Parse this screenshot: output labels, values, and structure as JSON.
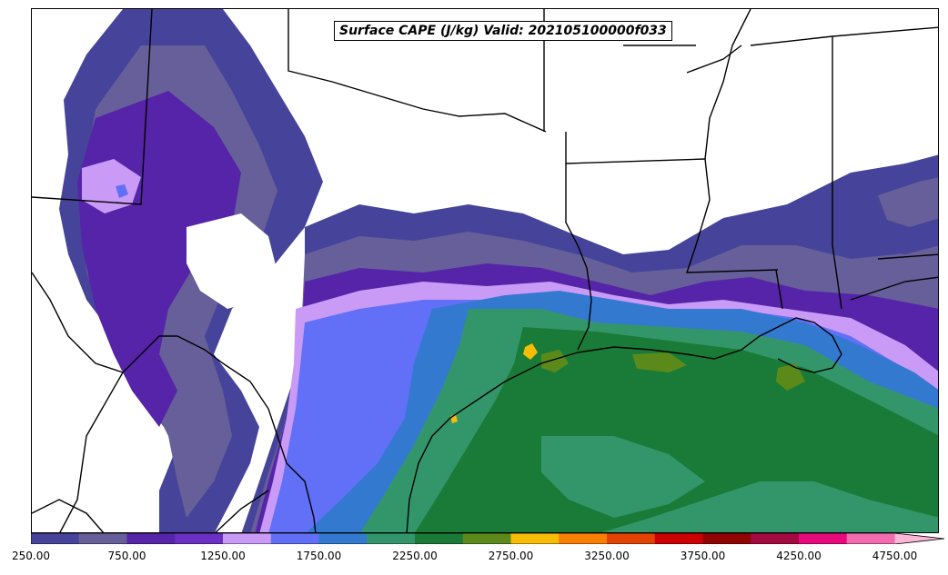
{
  "title": "Surface CAPE (J/kg) Valid: 202105100000f033",
  "colorbar": {
    "colors": [
      "#45449a",
      "#675f99",
      "#5524a8",
      "#6a2fc3",
      "#c99bf7",
      "#6270f7",
      "#3479d0",
      "#33966b",
      "#197b37",
      "#5b8a1b",
      "#f7bc05",
      "#fa7f05",
      "#e24302",
      "#cd0000",
      "#900403",
      "#a30a40",
      "#e8097d",
      "#f36cb0",
      "#fbb6d8"
    ],
    "ticks": [
      "250.00",
      "750.00",
      "1250.00",
      "1750.00",
      "2250.00",
      "2750.00",
      "3250.00",
      "3750.00",
      "4250.00",
      "4750.00"
    ]
  },
  "legend_icons": {
    "extend_max": "triangle-arrow"
  }
}
